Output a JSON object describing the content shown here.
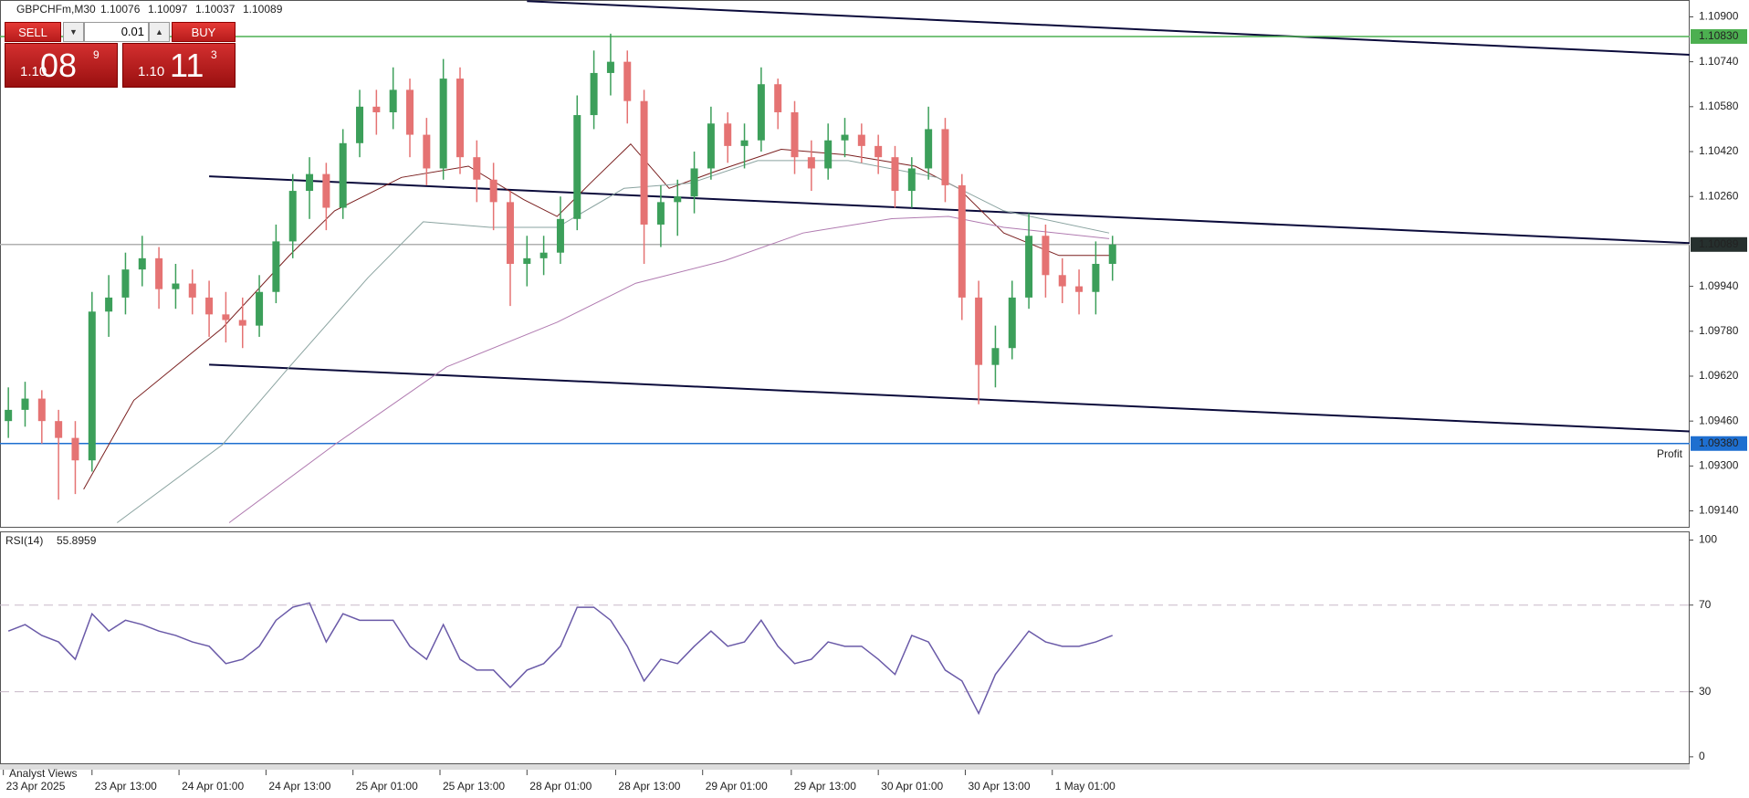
{
  "chart_data": [
    {
      "type": "candlestick",
      "title": "GBPCHFm,M30",
      "quote": [
        1.10076,
        1.10097,
        1.10037,
        1.10089
      ],
      "up_color": "#3c9f5a",
      "down_color": "#e57373",
      "xlim": [
        -0.5,
        100.5
      ],
      "ylim": [
        1.0908,
        1.1096
      ],
      "yticks": [
        {
          "value": 1.109,
          "label": "1.10900"
        },
        {
          "value": 1.1074,
          "label": "1.10740"
        },
        {
          "value": 1.1058,
          "label": "1.10580"
        },
        {
          "value": 1.1042,
          "label": "1.10420"
        },
        {
          "value": 1.1026,
          "label": "1.10260"
        },
        {
          "value": 1.0994,
          "label": "1.09940"
        },
        {
          "value": 1.0978,
          "label": "1.09780"
        },
        {
          "value": 1.0962,
          "label": "1.09620"
        },
        {
          "value": 1.0946,
          "label": "1.09460"
        },
        {
          "value": 1.093,
          "label": "1.09300"
        },
        {
          "value": 1.0914,
          "label": "1.09140"
        }
      ],
      "ohlc": [
        [
          1.0946,
          1.0958,
          1.094,
          1.095
        ],
        [
          1.095,
          1.096,
          1.0944,
          1.0954
        ],
        [
          1.0954,
          1.0957,
          1.0938,
          1.0946
        ],
        [
          1.0946,
          1.095,
          1.0918,
          1.094
        ],
        [
          1.094,
          1.0946,
          1.092,
          1.0932
        ],
        [
          1.0932,
          1.0992,
          1.0928,
          1.0985
        ],
        [
          1.0985,
          1.0998,
          1.0976,
          1.099
        ],
        [
          1.099,
          1.1006,
          1.0984,
          1.1
        ],
        [
          1.1,
          1.1012,
          1.0994,
          1.1004
        ],
        [
          1.1004,
          1.1008,
          1.0986,
          1.0993
        ],
        [
          1.0993,
          1.1002,
          1.0986,
          1.0995
        ],
        [
          1.0995,
          1.1,
          1.0984,
          1.099
        ],
        [
          1.099,
          1.0996,
          1.0976,
          1.0984
        ],
        [
          1.0984,
          1.0992,
          1.0974,
          1.0982
        ],
        [
          1.0982,
          1.099,
          1.0972,
          1.098
        ],
        [
          1.098,
          1.0998,
          1.0976,
          1.0992
        ],
        [
          1.0992,
          1.1016,
          1.0988,
          1.101
        ],
        [
          1.101,
          1.1034,
          1.1004,
          1.1028
        ],
        [
          1.1028,
          1.104,
          1.1018,
          1.1034
        ],
        [
          1.1034,
          1.1038,
          1.1014,
          1.1022
        ],
        [
          1.1022,
          1.105,
          1.1018,
          1.1045
        ],
        [
          1.1045,
          1.1064,
          1.104,
          1.1058
        ],
        [
          1.1058,
          1.1064,
          1.1048,
          1.1056
        ],
        [
          1.1056,
          1.1072,
          1.105,
          1.1064
        ],
        [
          1.1064,
          1.1068,
          1.104,
          1.1048
        ],
        [
          1.1048,
          1.1054,
          1.103,
          1.1036
        ],
        [
          1.1036,
          1.1075,
          1.1032,
          1.1068
        ],
        [
          1.1068,
          1.1072,
          1.1034,
          1.104
        ],
        [
          1.104,
          1.1046,
          1.1024,
          1.1032
        ],
        [
          1.1032,
          1.1038,
          1.1014,
          1.1024
        ],
        [
          1.1024,
          1.1028,
          1.0987,
          1.1002
        ],
        [
          1.1002,
          1.1012,
          1.0994,
          1.1004
        ],
        [
          1.1004,
          1.1012,
          1.0998,
          1.1006
        ],
        [
          1.1006,
          1.1026,
          1.1002,
          1.1018
        ],
        [
          1.1018,
          1.1062,
          1.1014,
          1.1055
        ],
        [
          1.1055,
          1.1078,
          1.105,
          1.107
        ],
        [
          1.107,
          1.1084,
          1.1062,
          1.1074
        ],
        [
          1.1074,
          1.1078,
          1.1052,
          1.106
        ],
        [
          1.106,
          1.1064,
          1.1002,
          1.1016
        ],
        [
          1.1016,
          1.103,
          1.1008,
          1.1024
        ],
        [
          1.1024,
          1.1032,
          1.1012,
          1.1026
        ],
        [
          1.1026,
          1.1042,
          1.102,
          1.1036
        ],
        [
          1.1036,
          1.1058,
          1.1032,
          1.1052
        ],
        [
          1.1052,
          1.1056,
          1.1038,
          1.1044
        ],
        [
          1.1044,
          1.1052,
          1.1036,
          1.1046
        ],
        [
          1.1046,
          1.1072,
          1.1042,
          1.1066
        ],
        [
          1.1066,
          1.1068,
          1.105,
          1.1056
        ],
        [
          1.1056,
          1.106,
          1.1034,
          1.104
        ],
        [
          1.104,
          1.1046,
          1.1028,
          1.1036
        ],
        [
          1.1036,
          1.1052,
          1.1032,
          1.1046
        ],
        [
          1.1046,
          1.1054,
          1.104,
          1.1048
        ],
        [
          1.1048,
          1.1052,
          1.1038,
          1.1044
        ],
        [
          1.1044,
          1.1048,
          1.1034,
          1.104
        ],
        [
          1.104,
          1.1044,
          1.1022,
          1.1028
        ],
        [
          1.1028,
          1.104,
          1.1022,
          1.1036
        ],
        [
          1.1036,
          1.1058,
          1.1032,
          1.105
        ],
        [
          1.105,
          1.1054,
          1.1024,
          1.103
        ],
        [
          1.103,
          1.1034,
          1.0982,
          1.099
        ],
        [
          1.099,
          1.0996,
          1.0952,
          1.0966
        ],
        [
          1.0966,
          1.098,
          1.0958,
          1.0972
        ],
        [
          1.0972,
          1.0996,
          1.0968,
          1.099
        ],
        [
          1.099,
          1.102,
          1.0986,
          1.1012
        ],
        [
          1.1012,
          1.1016,
          1.099,
          1.0998
        ],
        [
          1.0998,
          1.1004,
          1.0988,
          1.0994
        ],
        [
          1.0994,
          1.1,
          1.0984,
          1.0992
        ],
        [
          1.0992,
          1.101,
          1.0984,
          1.1002
        ],
        [
          1.1002,
          1.1012,
          1.0996,
          1.10089
        ]
      ],
      "ma": [
        {
          "color": "#7a1f1f",
          "x": [
            4.5,
            7.5,
            12.8,
            16.8,
            19.5,
            23.5,
            27.5,
            30.8,
            32.8,
            34.8,
            37.2,
            39.5,
            42.2,
            46.2,
            50.2,
            54.2,
            56.8,
            59.5,
            62.8,
            65.8
          ],
          "values": [
            1.09217,
            1.09534,
            1.09792,
            1.1005,
            1.10209,
            1.10328,
            1.10368,
            1.10249,
            1.10189,
            1.10308,
            1.10447,
            1.10289,
            1.10348,
            1.10428,
            1.10408,
            1.10368,
            1.10289,
            1.1013,
            1.1005,
            1.1005
          ]
        },
        {
          "color": "#8aa3a0",
          "x": [
            6.5,
            12.8,
            16.8,
            21.5,
            24.8,
            28.8,
            32.8,
            36.8,
            40.8,
            44.8,
            50.2,
            55.5,
            59.5,
            65.8
          ],
          "values": [
            1.09098,
            1.09376,
            1.09653,
            1.09971,
            1.1017,
            1.1015,
            1.1015,
            1.10289,
            1.10308,
            1.10388,
            1.10388,
            1.10328,
            1.10209,
            1.1013
          ]
        },
        {
          "color": "#b07ab0",
          "x": [
            13.2,
            19.5,
            26.2,
            32.8,
            37.5,
            42.8,
            47.5,
            52.8,
            56.2,
            59.5,
            65.8
          ],
          "values": [
            1.09098,
            1.09376,
            1.09653,
            1.09812,
            1.09951,
            1.10031,
            1.1013,
            1.10181,
            1.10189,
            1.1015,
            1.1011
          ]
        }
      ],
      "trendlines": [
        {
          "color": "#0b0b3b",
          "x": [
            31,
            100.5
          ],
          "values": [
            1.10956,
            1.10765
          ]
        },
        {
          "color": "#0b0b3b",
          "x": [
            12,
            100.5
          ],
          "values": [
            1.10332,
            1.10094
          ]
        },
        {
          "color": "#0b0b3b",
          "x": [
            12,
            100.5
          ],
          "values": [
            1.09661,
            1.09423
          ]
        }
      ],
      "hlines": [
        {
          "value": 1.1083,
          "label": "1.10830",
          "color": "#4caf50",
          "tag_color": "#4caf50"
        },
        {
          "value": 1.10089,
          "label": "1.10089",
          "color": "#b0b0b0",
          "tag_color": "#26302e"
        },
        {
          "value": 1.0938,
          "label": "1.09380",
          "color": "#1e6fd0",
          "tag_color": "#1e6fd0",
          "note": "Profit"
        }
      ]
    },
    {
      "type": "line",
      "title": "RSI(14)",
      "current": 55.8959,
      "color": "#6a5aa8",
      "xlim": [
        -0.5,
        100.5
      ],
      "ylim": [
        -3,
        104
      ],
      "yticks": [
        100,
        70,
        30,
        0
      ],
      "levels": [
        70,
        30
      ],
      "values": [
        58,
        61,
        56,
        53,
        45,
        66,
        58,
        63,
        61,
        58,
        56,
        53,
        51,
        43,
        45,
        51,
        63,
        69,
        71,
        53,
        66,
        63,
        63,
        63,
        51,
        45,
        61,
        45,
        40,
        40,
        32,
        40,
        43,
        51,
        69,
        69,
        63,
        51,
        35,
        45,
        43,
        51,
        58,
        51,
        53,
        63,
        51,
        43,
        45,
        53,
        51,
        51,
        45,
        38,
        56,
        53,
        40,
        35,
        20,
        38,
        48,
        58,
        53,
        51,
        51,
        53,
        56
      ],
      "xticks": [
        {
          "value": -0.3,
          "label": "23 Apr 2025"
        },
        {
          "value": 5,
          "label": "23 Apr 13:00"
        },
        {
          "value": 10.2,
          "label": "24 Apr 01:00"
        },
        {
          "value": 15.4,
          "label": "24 Apr 13:00"
        },
        {
          "value": 20.6,
          "label": "25 Apr 01:00"
        },
        {
          "value": 25.8,
          "label": "25 Apr 13:00"
        },
        {
          "value": 31,
          "label": "28 Apr 01:00"
        },
        {
          "value": 36.3,
          "label": "28 Apr 13:00"
        },
        {
          "value": 41.5,
          "label": "29 Apr 01:00"
        },
        {
          "value": 46.8,
          "label": "29 Apr 13:00"
        },
        {
          "value": 52,
          "label": "30 Apr 01:00"
        },
        {
          "value": 57.2,
          "label": "30 Apr 13:00"
        },
        {
          "value": 62.4,
          "label": "1 May 01:00"
        }
      ]
    }
  ],
  "trade_panel": {
    "sell": "SELL",
    "buy": "BUY",
    "volume": "0.01",
    "bid": {
      "big": "1.10",
      "pips": "08",
      "point": "9"
    },
    "ask": {
      "big": "1.10",
      "pips": "11",
      "point": "3"
    }
  },
  "footer_tab": "Analyst Views"
}
